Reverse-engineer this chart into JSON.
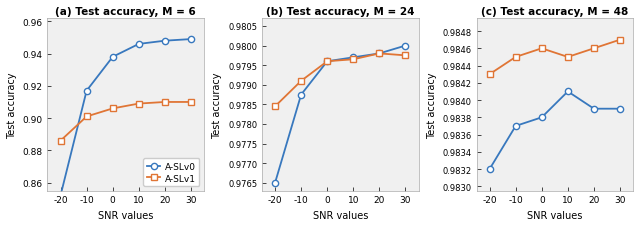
{
  "snr": [
    -20,
    -10,
    0,
    10,
    20,
    30
  ],
  "subplot1": {
    "title": "(a) Test accuracy, M = 6",
    "aslv0": [
      0.852,
      0.917,
      0.938,
      0.946,
      0.948,
      0.949
    ],
    "aslv1": [
      0.886,
      0.901,
      0.906,
      0.909,
      0.91,
      0.91
    ],
    "ylim": [
      0.855,
      0.962
    ],
    "ytick_step": 0.02
  },
  "subplot2": {
    "title": "(b) Test accuracy, M = 24",
    "aslv0": [
      0.9765,
      0.97875,
      0.9796,
      0.9797,
      0.9798,
      0.98
    ],
    "aslv1": [
      0.97845,
      0.9791,
      0.9796,
      0.97965,
      0.9798,
      0.97975
    ],
    "ylim": [
      0.9763,
      0.9807
    ],
    "ytick_step": 0.0005
  },
  "subplot3": {
    "title": "(c) Test accuracy, M = 48",
    "aslv0": [
      0.9832,
      0.9837,
      0.9838,
      0.9841,
      0.9839,
      0.9839
    ],
    "aslv1": [
      0.9843,
      0.9845,
      0.9846,
      0.9845,
      0.9846,
      0.9847
    ],
    "ylim": [
      0.98295,
      0.98495
    ],
    "ytick_step": 0.0002
  },
  "color_blue": "#3878be",
  "color_orange": "#e07535",
  "xlabel": "SNR values",
  "ylabel": "Test accuracy",
  "legend_labels": [
    "A-SLv0",
    "A-SLv1"
  ],
  "bg_color": "#f0f0f0",
  "title_fontsize": 7.5,
  "label_fontsize": 7,
  "tick_fontsize": 6.5,
  "legend_fontsize": 6.5
}
